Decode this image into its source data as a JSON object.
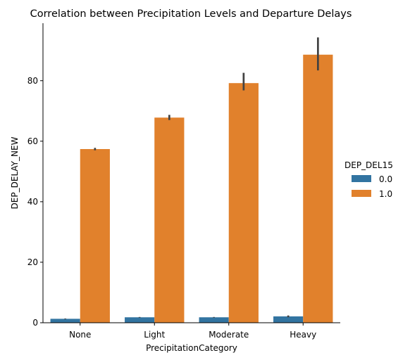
{
  "chart_data": {
    "type": "bar",
    "title": "Correlation between Precipitation Levels and Departure Delays",
    "xlabel": "PrecipitationCategory",
    "ylabel": "DEP_DELAY_NEW",
    "categories": [
      "None",
      "Light",
      "Moderate",
      "Heavy"
    ],
    "ylim": [
      0,
      99
    ],
    "yticks": [
      0,
      20,
      40,
      60,
      80
    ],
    "grid": false,
    "legend": {
      "title": "DEP_DEL15",
      "placement": "right",
      "entries": [
        "0.0",
        "1.0"
      ]
    },
    "series": [
      {
        "name": "0.0",
        "color": "#3274a1",
        "values": [
          1.3,
          1.8,
          1.8,
          2.1
        ],
        "err_low": [
          1.2,
          1.7,
          1.7,
          1.8
        ],
        "err_high": [
          1.4,
          1.9,
          1.9,
          2.4
        ]
      },
      {
        "name": "1.0",
        "color": "#e1812c",
        "values": [
          57.4,
          67.8,
          79.2,
          88.6
        ],
        "err_low": [
          57.0,
          67.0,
          76.8,
          83.4
        ],
        "err_high": [
          57.8,
          68.7,
          82.6,
          94.3
        ]
      }
    ],
    "errorbar_color": "#424242"
  }
}
